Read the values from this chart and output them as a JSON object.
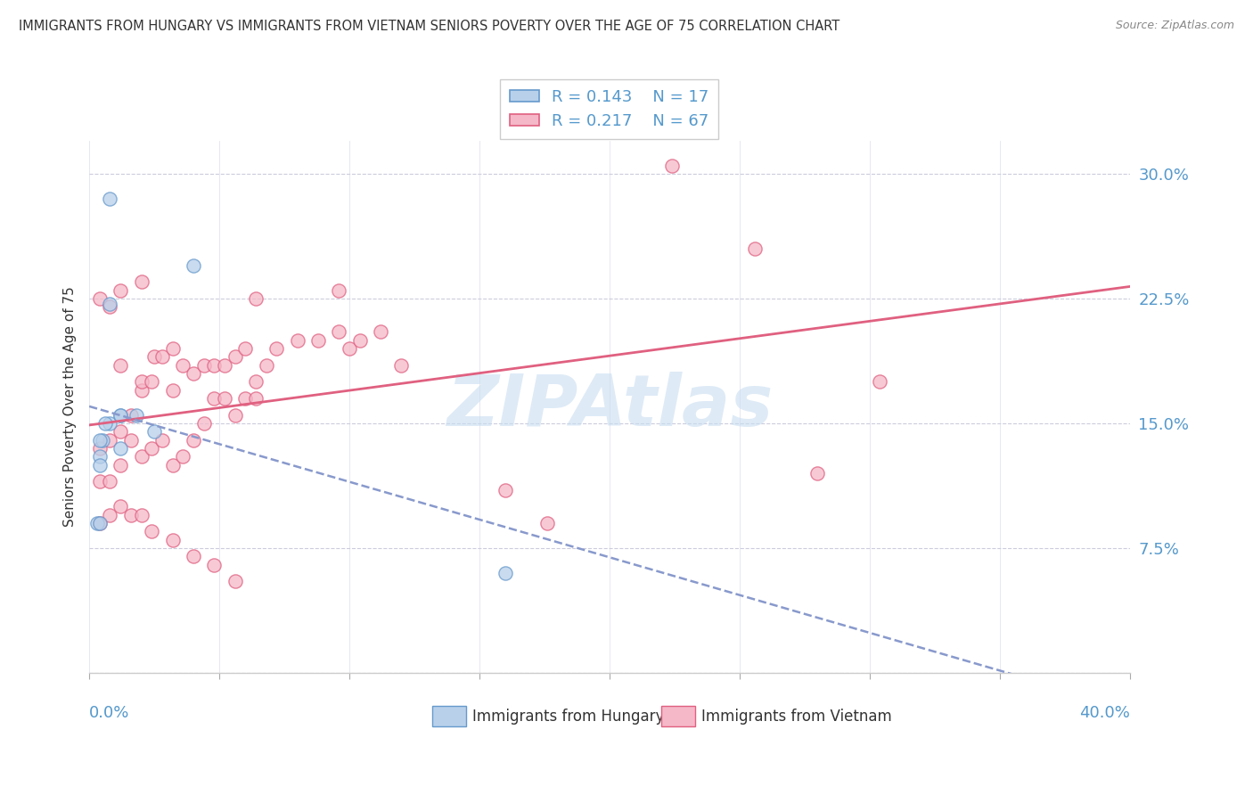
{
  "title": "IMMIGRANTS FROM HUNGARY VS IMMIGRANTS FROM VIETNAM SENIORS POVERTY OVER THE AGE OF 75 CORRELATION CHART",
  "source": "Source: ZipAtlas.com",
  "ylabel": "Seniors Poverty Over the Age of 75",
  "ylabel_ticks": [
    0.0,
    0.075,
    0.15,
    0.225,
    0.3
  ],
  "ylabel_tick_labels": [
    "",
    "7.5%",
    "15.0%",
    "22.5%",
    "30.0%"
  ],
  "xlim": [
    0.0,
    0.4
  ],
  "ylim": [
    0.0,
    0.32
  ],
  "watermark": "ZIPAtlas",
  "legend_hungary_r": "R = 0.143",
  "legend_hungary_n": "N = 17",
  "legend_vietnam_r": "R = 0.217",
  "legend_vietnam_n": "N = 67",
  "hungary_face_color": "#b8d0ea",
  "vietnam_face_color": "#f5b8c8",
  "hungary_edge_color": "#6699cc",
  "vietnam_edge_color": "#e06080",
  "hungary_trend_color": "#5577bb",
  "vietnam_trend_color": "#e06080",
  "dashed_trend_color": "#8899cc",
  "hungary_scatter": [
    [
      0.005,
      0.14
    ],
    [
      0.008,
      0.15
    ],
    [
      0.012,
      0.135
    ],
    [
      0.004,
      0.14
    ],
    [
      0.008,
      0.222
    ],
    [
      0.004,
      0.13
    ],
    [
      0.006,
      0.15
    ],
    [
      0.012,
      0.155
    ],
    [
      0.018,
      0.155
    ],
    [
      0.025,
      0.145
    ],
    [
      0.04,
      0.245
    ],
    [
      0.012,
      0.155
    ],
    [
      0.004,
      0.125
    ],
    [
      0.003,
      0.09
    ],
    [
      0.004,
      0.09
    ],
    [
      0.16,
      0.06
    ],
    [
      0.008,
      0.285
    ]
  ],
  "vietnam_scatter": [
    [
      0.004,
      0.135
    ],
    [
      0.008,
      0.14
    ],
    [
      0.012,
      0.145
    ],
    [
      0.016,
      0.14
    ],
    [
      0.02,
      0.17
    ],
    [
      0.016,
      0.155
    ],
    [
      0.012,
      0.185
    ],
    [
      0.02,
      0.175
    ],
    [
      0.024,
      0.175
    ],
    [
      0.025,
      0.19
    ],
    [
      0.028,
      0.19
    ],
    [
      0.032,
      0.195
    ],
    [
      0.032,
      0.17
    ],
    [
      0.036,
      0.185
    ],
    [
      0.04,
      0.18
    ],
    [
      0.044,
      0.185
    ],
    [
      0.048,
      0.185
    ],
    [
      0.052,
      0.185
    ],
    [
      0.056,
      0.19
    ],
    [
      0.06,
      0.195
    ],
    [
      0.064,
      0.175
    ],
    [
      0.068,
      0.185
    ],
    [
      0.072,
      0.195
    ],
    [
      0.08,
      0.2
    ],
    [
      0.088,
      0.2
    ],
    [
      0.096,
      0.205
    ],
    [
      0.1,
      0.195
    ],
    [
      0.104,
      0.2
    ],
    [
      0.112,
      0.205
    ],
    [
      0.004,
      0.115
    ],
    [
      0.008,
      0.115
    ],
    [
      0.012,
      0.125
    ],
    [
      0.02,
      0.13
    ],
    [
      0.024,
      0.135
    ],
    [
      0.028,
      0.14
    ],
    [
      0.032,
      0.125
    ],
    [
      0.036,
      0.13
    ],
    [
      0.04,
      0.14
    ],
    [
      0.044,
      0.15
    ],
    [
      0.048,
      0.165
    ],
    [
      0.052,
      0.165
    ],
    [
      0.056,
      0.155
    ],
    [
      0.06,
      0.165
    ],
    [
      0.064,
      0.165
    ],
    [
      0.004,
      0.09
    ],
    [
      0.008,
      0.095
    ],
    [
      0.012,
      0.1
    ],
    [
      0.016,
      0.095
    ],
    [
      0.02,
      0.095
    ],
    [
      0.024,
      0.085
    ],
    [
      0.032,
      0.08
    ],
    [
      0.04,
      0.07
    ],
    [
      0.048,
      0.065
    ],
    [
      0.056,
      0.055
    ],
    [
      0.004,
      0.225
    ],
    [
      0.008,
      0.22
    ],
    [
      0.012,
      0.23
    ],
    [
      0.02,
      0.235
    ],
    [
      0.064,
      0.225
    ],
    [
      0.096,
      0.23
    ],
    [
      0.12,
      0.185
    ],
    [
      0.16,
      0.11
    ],
    [
      0.176,
      0.09
    ],
    [
      0.224,
      0.305
    ],
    [
      0.256,
      0.255
    ],
    [
      0.28,
      0.12
    ],
    [
      0.304,
      0.175
    ]
  ]
}
